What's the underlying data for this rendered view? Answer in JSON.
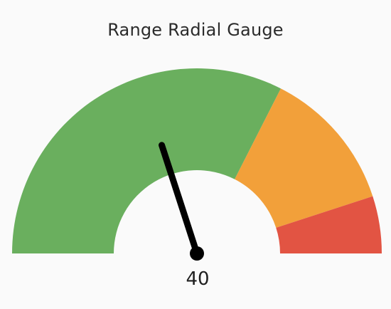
{
  "title": "Range Radial Gauge",
  "gauge": {
    "value": 40,
    "value_label": "40",
    "min": 0,
    "max": 100,
    "ranges": [
      {
        "name": "green-range",
        "from": 0,
        "to": 65,
        "color": "#6aaf5e"
      },
      {
        "name": "orange-range",
        "from": 65,
        "to": 90,
        "color": "#f2a03a"
      },
      {
        "name": "red-range",
        "from": 90,
        "to": 100,
        "color": "#e25443"
      }
    ],
    "needle_color": "#000000"
  }
}
